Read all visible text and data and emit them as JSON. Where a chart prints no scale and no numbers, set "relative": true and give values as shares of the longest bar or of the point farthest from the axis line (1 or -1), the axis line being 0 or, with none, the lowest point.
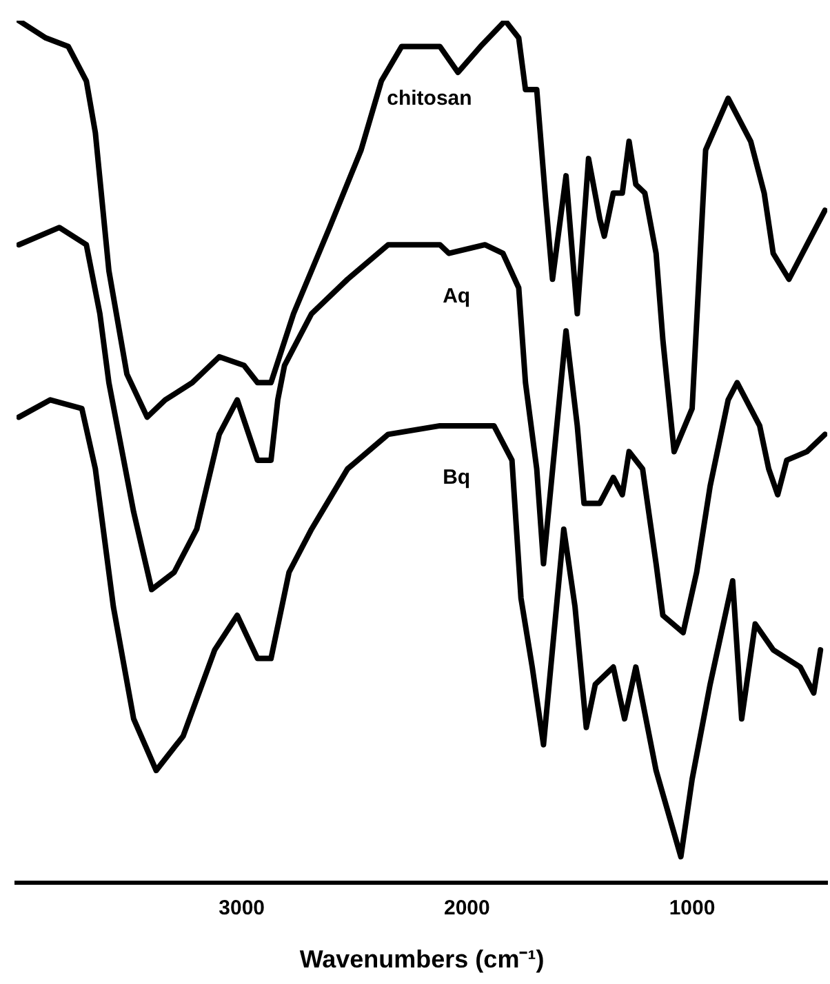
{
  "chart_data": {
    "type": "line",
    "xlabel": "Wavenumbers (cm⁻¹)",
    "relative": true,
    "xlim": [
      4000,
      400
    ],
    "xticks": [
      3000,
      2000,
      1000
    ],
    "marker": "none",
    "line_style": "solid",
    "series": [
      {
        "name": "chitosan",
        "color": "#000000",
        "x": [
          3990,
          3870,
          3770,
          3690,
          3650,
          3590,
          3510,
          3420,
          3340,
          3220,
          3100,
          2990,
          2930,
          2870,
          2770,
          2610,
          2470,
          2380,
          2290,
          2240,
          2120,
          2040,
          1940,
          1830,
          1770,
          1740,
          1690,
          1650,
          1620,
          1560,
          1510,
          1460,
          1410,
          1390,
          1350,
          1310,
          1280,
          1250,
          1210,
          1160,
          1130,
          1080,
          1000,
          940,
          840,
          740,
          680,
          640,
          570,
          490,
          410
        ],
        "values": [
          1.0,
          0.98,
          0.97,
          0.93,
          0.87,
          0.71,
          0.59,
          0.54,
          0.56,
          0.58,
          0.61,
          0.6,
          0.58,
          0.58,
          0.66,
          0.76,
          0.85,
          0.93,
          0.97,
          0.97,
          0.97,
          0.94,
          0.97,
          1.0,
          0.98,
          0.92,
          0.92,
          0.79,
          0.7,
          0.82,
          0.66,
          0.84,
          0.77,
          0.75,
          0.8,
          0.8,
          0.86,
          0.81,
          0.8,
          0.73,
          0.63,
          0.5,
          0.55,
          0.85,
          0.91,
          0.86,
          0.8,
          0.73,
          0.7,
          0.74,
          0.78
        ]
      },
      {
        "name": "Aq",
        "color": "#000000",
        "x": [
          3990,
          3810,
          3690,
          3630,
          3590,
          3480,
          3400,
          3300,
          3200,
          3100,
          3020,
          2930,
          2870,
          2840,
          2810,
          2690,
          2530,
          2350,
          2120,
          2080,
          1920,
          1840,
          1770,
          1740,
          1690,
          1660,
          1560,
          1510,
          1480,
          1410,
          1350,
          1310,
          1280,
          1220,
          1160,
          1130,
          1040,
          980,
          920,
          840,
          800,
          700,
          660,
          620,
          580,
          490,
          410
        ],
        "values": [
          0.74,
          0.76,
          0.74,
          0.66,
          0.58,
          0.43,
          0.34,
          0.36,
          0.41,
          0.52,
          0.56,
          0.49,
          0.49,
          0.56,
          0.6,
          0.66,
          0.7,
          0.74,
          0.74,
          0.73,
          0.74,
          0.73,
          0.69,
          0.58,
          0.48,
          0.37,
          0.64,
          0.53,
          0.44,
          0.44,
          0.47,
          0.45,
          0.5,
          0.48,
          0.37,
          0.31,
          0.29,
          0.36,
          0.46,
          0.56,
          0.58,
          0.53,
          0.48,
          0.45,
          0.49,
          0.5,
          0.52
        ]
      },
      {
        "name": "Bq",
        "color": "#000000",
        "x": [
          3990,
          3850,
          3710,
          3650,
          3570,
          3480,
          3380,
          3260,
          3120,
          3020,
          2930,
          2870,
          2790,
          2690,
          2530,
          2350,
          2120,
          1880,
          1800,
          1760,
          1710,
          1660,
          1570,
          1520,
          1470,
          1430,
          1350,
          1300,
          1250,
          1160,
          1050,
          1000,
          920,
          820,
          780,
          720,
          640,
          520,
          460,
          430
        ],
        "values": [
          0.54,
          0.56,
          0.55,
          0.48,
          0.32,
          0.19,
          0.13,
          0.17,
          0.27,
          0.31,
          0.26,
          0.26,
          0.36,
          0.41,
          0.48,
          0.52,
          0.53,
          0.53,
          0.49,
          0.33,
          0.25,
          0.16,
          0.41,
          0.32,
          0.18,
          0.23,
          0.25,
          0.19,
          0.25,
          0.13,
          0.03,
          0.12,
          0.23,
          0.35,
          0.19,
          0.3,
          0.27,
          0.25,
          0.22,
          0.27
        ]
      }
    ]
  }
}
